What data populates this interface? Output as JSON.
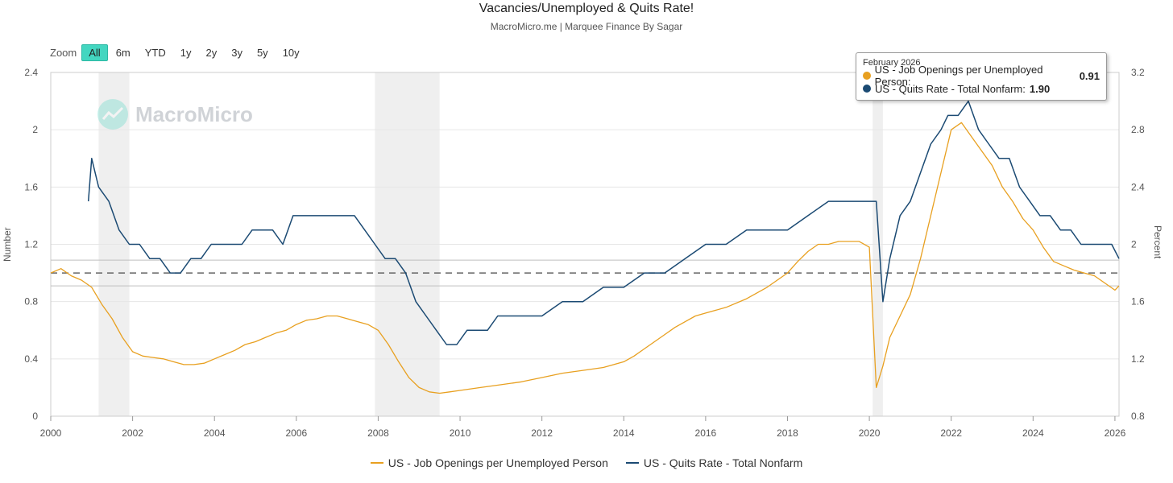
{
  "title": "Vacancies/Unemployed & Quits Rate!",
  "subtitle": "MacroMicro.me | Marquee Finance By Sagar",
  "watermark": "MacroMicro",
  "zoom": {
    "label": "Zoom",
    "options": [
      "All",
      "6m",
      "YTD",
      "1y",
      "2y",
      "3y",
      "5y",
      "10y"
    ],
    "active": "All"
  },
  "tooltip": {
    "date": "February 2026",
    "rows": [
      {
        "label": "US - Job Openings per Unemployed Person:",
        "value": "0.91",
        "color": "#e8a020"
      },
      {
        "label": "US - Quits Rate - Total Nonfarm:",
        "value": "1.90",
        "color": "#1b4a73"
      }
    ]
  },
  "legend": [
    {
      "label": "US - Job Openings per Unemployed Person",
      "color": "#e8a020"
    },
    {
      "label": "US - Quits Rate - Total Nonfarm",
      "color": "#1b4a73"
    }
  ],
  "chart_data": {
    "type": "line",
    "x_tick_labels": [
      "2000",
      "2002",
      "2004",
      "2006",
      "2008",
      "2010",
      "2012",
      "2014",
      "2016",
      "2018",
      "2020",
      "2022",
      "2024",
      "2026"
    ],
    "xlim": [
      2000.0,
      2026.1
    ],
    "y_left": {
      "label": "Number",
      "lim": [
        0,
        2.4
      ],
      "ticks": [
        "0",
        "0.4",
        "0.8",
        "1.2",
        "1.6",
        "2",
        "2.4"
      ]
    },
    "y_right": {
      "label": "Percent",
      "lim": [
        0.8,
        3.2
      ],
      "ticks": [
        "0.8",
        "1.2",
        "1.6",
        "2",
        "2.4",
        "2.8",
        "3.2"
      ]
    },
    "reference_line_left": 1.0,
    "recessions": [
      [
        2001.17,
        2001.92
      ],
      [
        2007.92,
        2009.5
      ],
      [
        2020.08,
        2020.33
      ]
    ],
    "series": [
      {
        "name": "US - Job Openings per Unemployed Person",
        "axis": "left",
        "color": "#e8a020",
        "x": [
          2000.0,
          2000.25,
          2000.5,
          2000.75,
          2001.0,
          2001.25,
          2001.5,
          2001.75,
          2002.0,
          2002.25,
          2002.5,
          2002.75,
          2003.0,
          2003.25,
          2003.5,
          2003.75,
          2004.0,
          2004.25,
          2004.5,
          2004.75,
          2005.0,
          2005.25,
          2005.5,
          2005.75,
          2006.0,
          2006.25,
          2006.5,
          2006.75,
          2007.0,
          2007.25,
          2007.5,
          2007.75,
          2008.0,
          2008.25,
          2008.5,
          2008.75,
          2009.0,
          2009.25,
          2009.5,
          2009.75,
          2010.0,
          2010.5,
          2011.0,
          2011.5,
          2012.0,
          2012.5,
          2013.0,
          2013.5,
          2014.0,
          2014.25,
          2014.5,
          2014.75,
          2015.0,
          2015.25,
          2015.5,
          2015.75,
          2016.0,
          2016.5,
          2017.0,
          2017.5,
          2018.0,
          2018.25,
          2018.5,
          2018.75,
          2019.0,
          2019.25,
          2019.5,
          2019.75,
          2020.0,
          2020.17,
          2020.33,
          2020.5,
          2020.75,
          2021.0,
          2021.25,
          2021.5,
          2021.75,
          2022.0,
          2022.25,
          2022.5,
          2022.75,
          2023.0,
          2023.25,
          2023.5,
          2023.75,
          2024.0,
          2024.25,
          2024.5,
          2024.75,
          2025.0,
          2025.25,
          2025.5,
          2025.75,
          2026.0,
          2026.1
        ],
        "values": [
          1.0,
          1.03,
          0.98,
          0.95,
          0.9,
          0.78,
          0.68,
          0.55,
          0.45,
          0.42,
          0.41,
          0.4,
          0.38,
          0.36,
          0.36,
          0.37,
          0.4,
          0.43,
          0.46,
          0.5,
          0.52,
          0.55,
          0.58,
          0.6,
          0.64,
          0.67,
          0.68,
          0.7,
          0.7,
          0.68,
          0.66,
          0.64,
          0.6,
          0.5,
          0.38,
          0.27,
          0.2,
          0.17,
          0.16,
          0.17,
          0.18,
          0.2,
          0.22,
          0.24,
          0.27,
          0.3,
          0.32,
          0.34,
          0.38,
          0.42,
          0.47,
          0.52,
          0.57,
          0.62,
          0.66,
          0.7,
          0.72,
          0.76,
          0.82,
          0.9,
          1.0,
          1.08,
          1.15,
          1.2,
          1.2,
          1.22,
          1.22,
          1.22,
          1.18,
          0.2,
          0.35,
          0.55,
          0.7,
          0.85,
          1.1,
          1.4,
          1.7,
          2.0,
          2.05,
          1.95,
          1.85,
          1.75,
          1.6,
          1.5,
          1.38,
          1.3,
          1.18,
          1.08,
          1.05,
          1.02,
          1.0,
          0.98,
          0.93,
          0.88,
          0.91
        ]
      },
      {
        "name": "US - Quits Rate - Total Nonfarm",
        "axis": "right",
        "color": "#1b4a73",
        "x": [
          2000.92,
          2001.0,
          2001.17,
          2001.42,
          2001.67,
          2001.92,
          2002.17,
          2002.42,
          2002.67,
          2002.92,
          2003.17,
          2003.42,
          2003.67,
          2003.92,
          2004.17,
          2004.42,
          2004.67,
          2004.92,
          2005.17,
          2005.42,
          2005.67,
          2005.92,
          2006.17,
          2006.42,
          2006.67,
          2006.92,
          2007.17,
          2007.42,
          2007.67,
          2007.92,
          2008.17,
          2008.42,
          2008.67,
          2008.92,
          2009.17,
          2009.42,
          2009.67,
          2009.92,
          2010.17,
          2010.42,
          2010.67,
          2010.92,
          2011.5,
          2012.0,
          2012.5,
          2013.0,
          2013.5,
          2014.0,
          2014.5,
          2015.0,
          2015.5,
          2016.0,
          2016.5,
          2017.0,
          2017.5,
          2018.0,
          2018.5,
          2019.0,
          2019.5,
          2019.92,
          2020.17,
          2020.33,
          2020.5,
          2020.75,
          2021.0,
          2021.25,
          2021.5,
          2021.75,
          2021.92,
          2022.17,
          2022.42,
          2022.67,
          2022.92,
          2023.17,
          2023.42,
          2023.67,
          2023.92,
          2024.17,
          2024.42,
          2024.67,
          2024.92,
          2025.17,
          2025.42,
          2025.67,
          2025.92,
          2026.1
        ],
        "values": [
          2.3,
          2.6,
          2.4,
          2.3,
          2.1,
          2.0,
          2.0,
          1.9,
          1.9,
          1.8,
          1.8,
          1.9,
          1.9,
          2.0,
          2.0,
          2.0,
          2.0,
          2.1,
          2.1,
          2.1,
          2.0,
          2.2,
          2.2,
          2.2,
          2.2,
          2.2,
          2.2,
          2.2,
          2.1,
          2.0,
          1.9,
          1.9,
          1.8,
          1.6,
          1.5,
          1.4,
          1.3,
          1.3,
          1.4,
          1.4,
          1.4,
          1.5,
          1.5,
          1.5,
          1.6,
          1.6,
          1.7,
          1.7,
          1.8,
          1.8,
          1.9,
          2.0,
          2.0,
          2.1,
          2.1,
          2.1,
          2.2,
          2.3,
          2.3,
          2.3,
          2.3,
          1.6,
          1.9,
          2.2,
          2.3,
          2.5,
          2.7,
          2.8,
          2.9,
          2.9,
          3.0,
          2.8,
          2.7,
          2.6,
          2.6,
          2.4,
          2.3,
          2.2,
          2.2,
          2.1,
          2.1,
          2.0,
          2.0,
          2.0,
          2.0,
          1.9
        ]
      }
    ]
  }
}
